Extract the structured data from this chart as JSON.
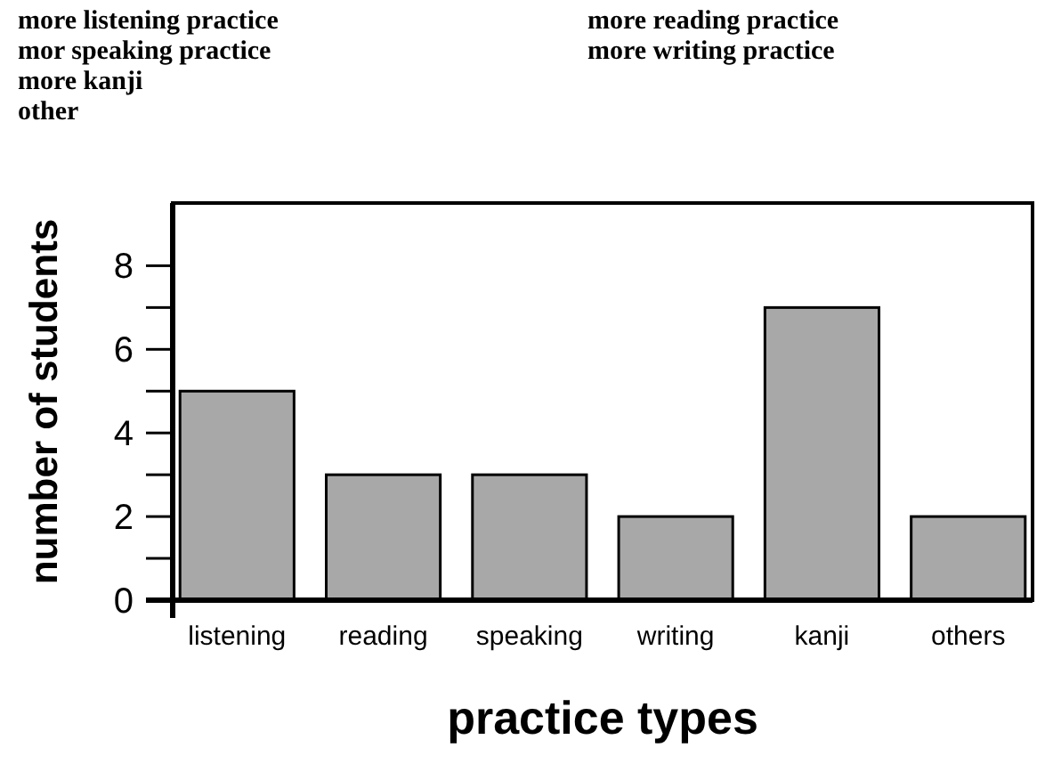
{
  "chart_data": {
    "type": "bar",
    "xlabel": "practice types",
    "ylabel": "number of students",
    "annotations": [
      "more listening practice",
      "mor speaking practice",
      "more kanji",
      "other",
      "more reading practice",
      "more writing practice"
    ],
    "categories": [
      "listening",
      "reading",
      "speaking",
      "writing",
      "kanji",
      "others"
    ],
    "values": [
      5,
      3,
      3,
      2,
      7,
      2
    ],
    "color": "#a8a8a8",
    "ylim": [
      0,
      9.5
    ],
    "yticks": [
      0,
      {
        "value": 1,
        "label": null
      },
      2,
      {
        "value": 3,
        "label": null
      },
      4,
      {
        "value": 5,
        "label": null
      },
      6,
      {
        "value": 7,
        "label": null
      },
      8
    ],
    "grid": false
  }
}
